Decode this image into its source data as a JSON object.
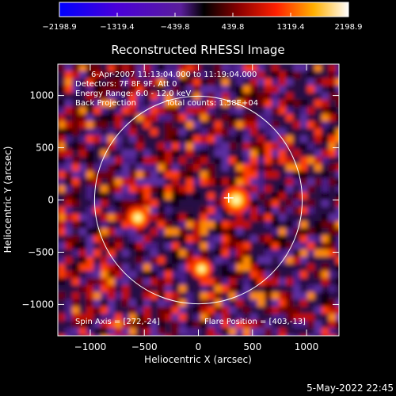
{
  "chart_data": {
    "type": "heatmap",
    "title": "Reconstructed RHESSI Image",
    "xlabel": "Heliocentric X (arcsec)",
    "ylabel": "Heliocentric Y (arcsec)",
    "xlim": [
      -1300,
      1300
    ],
    "ylim": [
      -1300,
      1300
    ],
    "x_ticks": [
      -1000,
      -500,
      0,
      500,
      1000
    ],
    "y_ticks": [
      -1000,
      -500,
      0,
      500,
      1000
    ],
    "x_tick_labels": [
      "−1000",
      "−500",
      "0",
      "500",
      "1000"
    ],
    "y_tick_labels": [
      "−1000",
      "−500",
      "0",
      "500",
      "1000"
    ],
    "colorbar": {
      "range": [
        -2198.9,
        2198.9
      ],
      "ticks": [
        -2198.9,
        -1319.4,
        -439.8,
        439.8,
        1319.4,
        2198.9
      ],
      "tick_labels": [
        "−2198.9",
        "−1319.4",
        "−439.8",
        "439.8",
        "1319.4",
        "2198.9"
      ]
    },
    "annotations": {
      "time_range": "6-Apr-2007 11:13:04.000 to 11:19:04.000",
      "detectors": "Detectors: 7F 8F 9F, Att 0",
      "energy_range": "Energy Range: 6.0 - 12.0 keV",
      "method": "Back Projection",
      "total_counts": "Total counts: 1.58E+04",
      "spin_axis": "Spin Axis = [272,-24]",
      "flare_position": "Flare Position = [403,-13]"
    },
    "solar_disk_radius": 960,
    "marker_position": [
      280,
      20
    ],
    "hot_spots": [
      {
        "x": 350,
        "y": 0,
        "value": 2198.9
      },
      {
        "x": -560,
        "y": -170,
        "value": 1700
      },
      {
        "x": 30,
        "y": -660,
        "value": 1500
      }
    ]
  },
  "timestamp": "5-May-2022 22:45"
}
